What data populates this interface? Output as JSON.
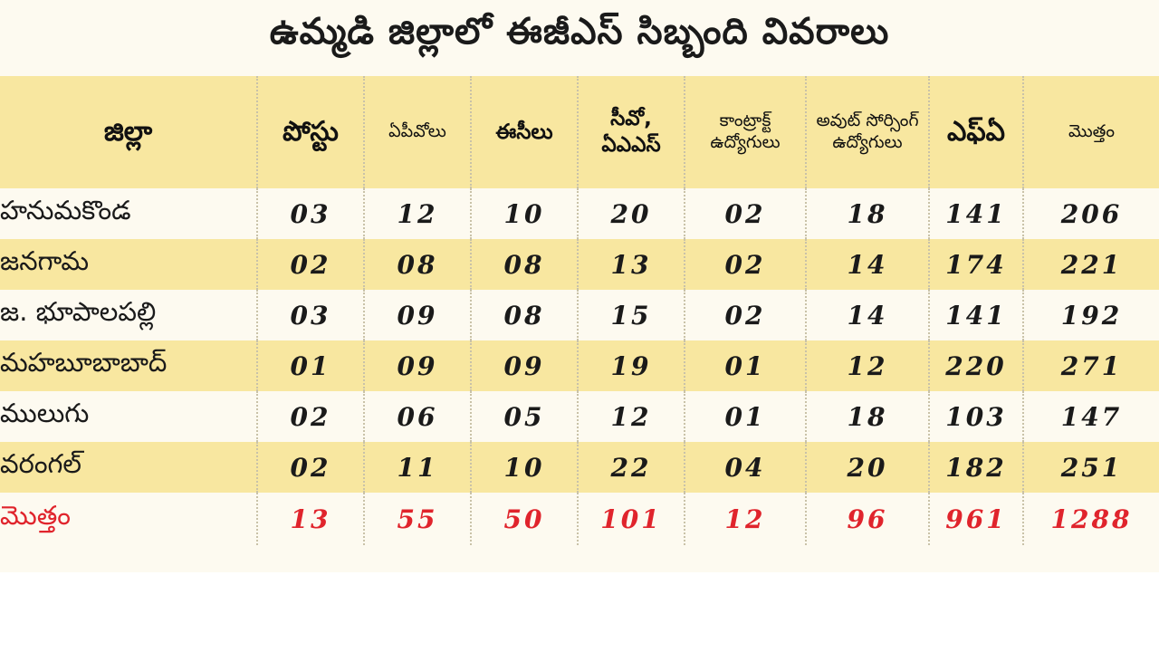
{
  "title": "ఉమ్మడి జిల్లాలో ఈజీఎస్ సిబ్బంది వివరాలు",
  "headers": [
    "జిల్లా",
    "పోస్టు",
    "ఏపీవోలు",
    "ఈసీలు",
    "సీవో, ఏఎఎస్",
    "కాంట్రాక్ట్ ఉద్యోగులు",
    "అవుట్ సోర్సింగ్ ఉద్యోగులు",
    "ఎఫ్ఏ",
    "మొత్తం"
  ],
  "rows": [
    {
      "district": "హనుమకొండ",
      "values": [
        "03",
        "12",
        "10",
        "20",
        "02",
        "18",
        "141",
        "206"
      ]
    },
    {
      "district": "జనగామ",
      "values": [
        "02",
        "08",
        "08",
        "13",
        "02",
        "14",
        "174",
        "221"
      ]
    },
    {
      "district": "జ. భూపాలపల్లి",
      "values": [
        "03",
        "09",
        "08",
        "15",
        "02",
        "14",
        "141",
        "192"
      ]
    },
    {
      "district": "మహబూబాబాద్",
      "values": [
        "01",
        "09",
        "09",
        "19",
        "01",
        "12",
        "220",
        "271"
      ]
    },
    {
      "district": "ములుగు",
      "values": [
        "02",
        "06",
        "05",
        "12",
        "01",
        "18",
        "103",
        "147"
      ]
    },
    {
      "district": "వరంగల్",
      "values": [
        "02",
        "11",
        "10",
        "22",
        "04",
        "20",
        "182",
        "251"
      ]
    }
  ],
  "total": {
    "district": "మొత్తం",
    "values": [
      "13",
      "55",
      "50",
      "101",
      "12",
      "96",
      "961",
      "1288"
    ]
  },
  "colors": {
    "header_bg": "#f8e7a0",
    "paper_bg": "#fdfaf0",
    "total_text": "#e0242c"
  }
}
